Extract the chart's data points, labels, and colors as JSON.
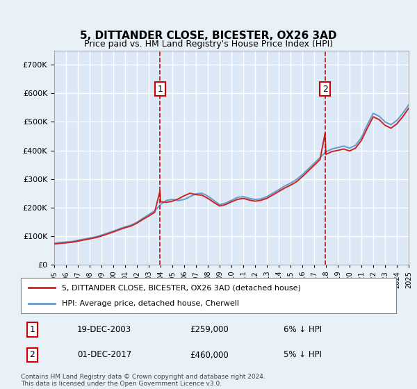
{
  "title": "5, DITTANDER CLOSE, BICESTER, OX26 3AD",
  "subtitle": "Price paid vs. HM Land Registry's House Price Index (HPI)",
  "legend_line1": "5, DITTANDER CLOSE, BICESTER, OX26 3AD (detached house)",
  "legend_line2": "HPI: Average price, detached house, Cherwell",
  "annotation1_label": "1",
  "annotation1_date": "19-DEC-2003",
  "annotation1_price": "£259,000",
  "annotation1_hpi": "6% ↓ HPI",
  "annotation2_label": "2",
  "annotation2_date": "01-DEC-2017",
  "annotation2_price": "£460,000",
  "annotation2_hpi": "5% ↓ HPI",
  "footnote": "Contains HM Land Registry data © Crown copyright and database right 2024.\nThis data is licensed under the Open Government Licence v3.0.",
  "background_color": "#e8f0f8",
  "plot_bg_color": "#dce8f5",
  "grid_color": "#ffffff",
  "hpi_color": "#6699cc",
  "price_color": "#cc2222",
  "annotation_color": "#cc0000",
  "ylim": [
    0,
    750000
  ],
  "yticks": [
    0,
    100000,
    200000,
    300000,
    400000,
    500000,
    600000,
    700000
  ],
  "xstart_year": 1995,
  "xend_year": 2025,
  "sale1_year": 2003.96,
  "sale1_price": 259000,
  "sale2_year": 2017.92,
  "sale2_price": 460000,
  "hpi_years": [
    1995,
    1995.5,
    1996,
    1996.5,
    1997,
    1997.5,
    1998,
    1998.5,
    1999,
    1999.5,
    2000,
    2000.5,
    2001,
    2001.5,
    2002,
    2002.5,
    2003,
    2003.5,
    2004,
    2004.5,
    2005,
    2005.5,
    2006,
    2006.5,
    2007,
    2007.5,
    2008,
    2008.5,
    2009,
    2009.5,
    2010,
    2010.5,
    2011,
    2011.5,
    2012,
    2012.5,
    2013,
    2013.5,
    2014,
    2014.5,
    2015,
    2015.5,
    2016,
    2016.5,
    2017,
    2017.5,
    2018,
    2018.5,
    2019,
    2019.5,
    2020,
    2020.5,
    2021,
    2021.5,
    2022,
    2022.5,
    2023,
    2023.5,
    2024,
    2024.5,
    2025
  ],
  "hpi_values": [
    75000,
    77000,
    79000,
    81000,
    85000,
    89000,
    93000,
    97000,
    103000,
    110000,
    117000,
    125000,
    132000,
    138000,
    148000,
    162000,
    175000,
    188000,
    210000,
    225000,
    228000,
    224000,
    228000,
    238000,
    248000,
    250000,
    240000,
    225000,
    210000,
    215000,
    225000,
    235000,
    238000,
    232000,
    228000,
    230000,
    238000,
    250000,
    262000,
    275000,
    285000,
    298000,
    315000,
    335000,
    355000,
    375000,
    395000,
    405000,
    410000,
    415000,
    408000,
    418000,
    445000,
    490000,
    530000,
    520000,
    500000,
    490000,
    505000,
    530000,
    560000
  ],
  "price_years": [
    1995,
    1995.5,
    1996,
    1996.5,
    1997,
    1997.5,
    1998,
    1998.5,
    1999,
    1999.5,
    2000,
    2000.5,
    2001,
    2001.5,
    2002,
    2002.5,
    2003,
    2003.5,
    2003.96,
    2004,
    2004.5,
    2005,
    2005.5,
    2006,
    2006.5,
    2007,
    2007.5,
    2008,
    2008.5,
    2009,
    2009.5,
    2010,
    2010.5,
    2011,
    2011.5,
    2012,
    2012.5,
    2013,
    2013.5,
    2014,
    2014.5,
    2015,
    2015.5,
    2016,
    2016.5,
    2017,
    2017.5,
    2017.92,
    2018,
    2018.5,
    2019,
    2019.5,
    2020,
    2020.5,
    2021,
    2021.5,
    2022,
    2022.5,
    2023,
    2023.5,
    2024,
    2024.5,
    2025
  ],
  "price_values": [
    72000,
    74000,
    76000,
    78000,
    82000,
    86000,
    90000,
    94000,
    100000,
    107000,
    114000,
    122000,
    129000,
    135000,
    145000,
    158000,
    170000,
    183000,
    259000,
    220000,
    218000,
    222000,
    230000,
    241000,
    250000,
    245000,
    243000,
    232000,
    218000,
    205000,
    210000,
    220000,
    228000,
    232000,
    226000,
    222000,
    225000,
    232000,
    244000,
    256000,
    268000,
    278000,
    290000,
    308000,
    328000,
    348000,
    368000,
    460000,
    386000,
    396000,
    400000,
    405000,
    398000,
    408000,
    435000,
    478000,
    518000,
    508000,
    488000,
    478000,
    493000,
    518000,
    548000
  ]
}
